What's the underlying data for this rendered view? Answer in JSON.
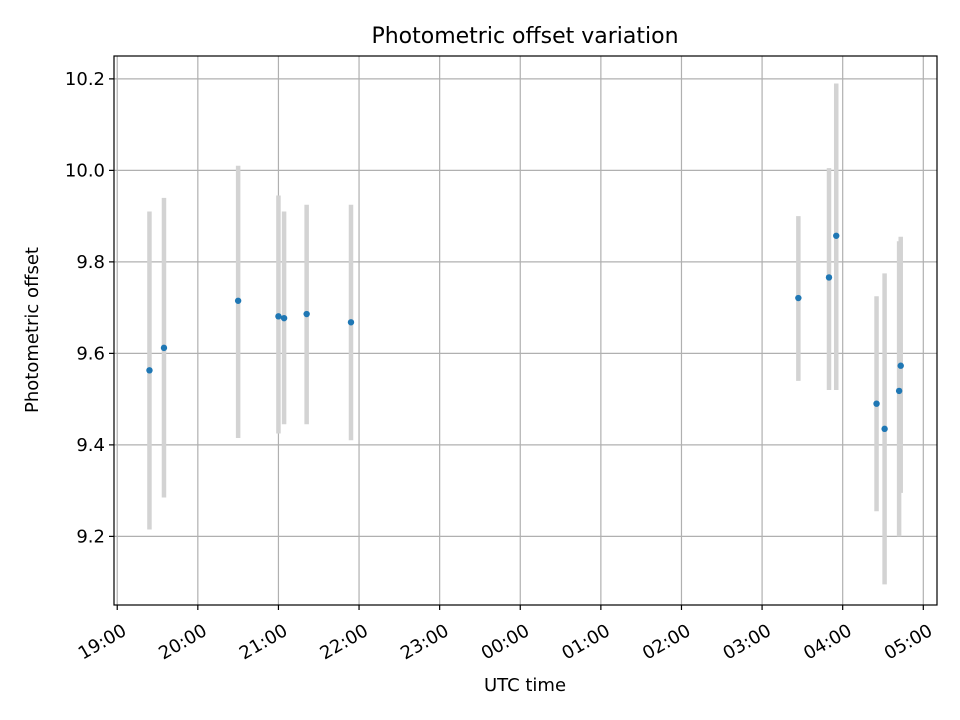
{
  "chart_data": {
    "type": "scatter",
    "title": "Photometric offset variation",
    "xlabel": "UTC time",
    "ylabel": "Photometric offset",
    "x_unit": "UTC hours",
    "x_tick_labels": [
      "19:00",
      "20:00",
      "21:00",
      "22:00",
      "23:00",
      "00:00",
      "01:00",
      "02:00",
      "03:00",
      "04:00",
      "05:00"
    ],
    "x_tick_values": [
      19,
      20,
      21,
      22,
      23,
      24,
      25,
      26,
      27,
      28,
      29
    ],
    "y_ticks": [
      9.2,
      9.4,
      9.6,
      9.8,
      10.0,
      10.2
    ],
    "y_tick_labels": [
      "9.2",
      "9.4",
      "9.6",
      "9.8",
      "10.0",
      "10.2"
    ],
    "xlim": [
      18.96,
      29.17
    ],
    "ylim": [
      9.05,
      10.25
    ],
    "grid": true,
    "series": [
      {
        "marker_color": "#1f77b4",
        "errorbar_color": "#d3d3d3",
        "points": [
          {
            "x": 19.4,
            "y": 9.563,
            "ylow": 9.215,
            "yhigh": 9.91
          },
          {
            "x": 19.58,
            "y": 9.612,
            "ylow": 9.285,
            "yhigh": 9.94
          },
          {
            "x": 20.5,
            "y": 9.715,
            "ylow": 9.415,
            "yhigh": 10.01
          },
          {
            "x": 21.0,
            "y": 9.681,
            "ylow": 9.425,
            "yhigh": 9.945
          },
          {
            "x": 21.07,
            "y": 9.677,
            "ylow": 9.445,
            "yhigh": 9.91
          },
          {
            "x": 21.35,
            "y": 9.686,
            "ylow": 9.445,
            "yhigh": 9.925
          },
          {
            "x": 21.9,
            "y": 9.668,
            "ylow": 9.41,
            "yhigh": 9.925
          },
          {
            "x": 27.45,
            "y": 9.721,
            "ylow": 9.54,
            "yhigh": 9.9
          },
          {
            "x": 27.83,
            "y": 9.766,
            "ylow": 9.52,
            "yhigh": 10.005
          },
          {
            "x": 27.92,
            "y": 9.857,
            "ylow": 9.52,
            "yhigh": 10.19
          },
          {
            "x": 28.42,
            "y": 9.49,
            "ylow": 9.255,
            "yhigh": 9.725
          },
          {
            "x": 28.52,
            "y": 9.435,
            "ylow": 9.095,
            "yhigh": 9.775
          },
          {
            "x": 28.7,
            "y": 9.518,
            "ylow": 9.2,
            "yhigh": 9.845
          },
          {
            "x": 28.72,
            "y": 9.573,
            "ylow": 9.295,
            "yhigh": 9.855
          }
        ]
      }
    ]
  }
}
